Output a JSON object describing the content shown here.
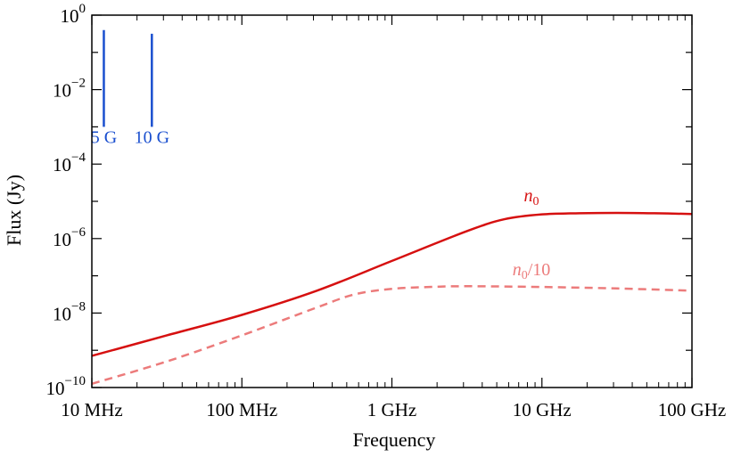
{
  "chart_data": {
    "type": "line",
    "title": "",
    "xlabel": "Frequency",
    "ylabel": "Flux (Jy)",
    "xscale": "log",
    "yscale": "log",
    "xlim_log10_hz": [
      7,
      11
    ],
    "ylim_log10_jy": [
      -10,
      0
    ],
    "x_ticks": [
      {
        "label": "10 MHz",
        "log10_hz": 7
      },
      {
        "label": "100 MHz",
        "log10_hz": 8
      },
      {
        "label": "1 GHz",
        "log10_hz": 9
      },
      {
        "label": "10 GHz",
        "log10_hz": 10
      },
      {
        "label": "100 GHz",
        "log10_hz": 11
      }
    ],
    "y_ticks": [
      {
        "base": "10",
        "exp": "0",
        "log10_jy": 0
      },
      {
        "base": "10",
        "exp": "−2",
        "log10_jy": -2
      },
      {
        "base": "10",
        "exp": "−4",
        "log10_jy": -4
      },
      {
        "base": "10",
        "exp": "−6",
        "log10_jy": -6
      },
      {
        "base": "10",
        "exp": "−8",
        "log10_jy": -8
      },
      {
        "base": "10",
        "exp": "−10",
        "log10_jy": -10
      }
    ],
    "series": [
      {
        "name": "n0",
        "label_main": "n",
        "label_sub": "0",
        "label_tail": "",
        "color": "#d61010",
        "dash": "solid",
        "points_log10": [
          [
            7.0,
            -9.15
          ],
          [
            7.5,
            -8.6
          ],
          [
            8.0,
            -8.05
          ],
          [
            8.5,
            -7.4
          ],
          [
            9.0,
            -6.6
          ],
          [
            9.5,
            -5.8
          ],
          [
            9.75,
            -5.48
          ],
          [
            10.0,
            -5.35
          ],
          [
            10.25,
            -5.32
          ],
          [
            10.5,
            -5.31
          ],
          [
            10.75,
            -5.32
          ],
          [
            11.0,
            -5.34
          ]
        ]
      },
      {
        "name": "n0/10",
        "label_main": "n",
        "label_sub": "0",
        "label_tail": "/10",
        "color": "#ec7b7b",
        "dash": "dashed",
        "points_log10": [
          [
            7.0,
            -9.9
          ],
          [
            7.5,
            -9.3
          ],
          [
            8.0,
            -8.6
          ],
          [
            8.5,
            -7.85
          ],
          [
            8.75,
            -7.5
          ],
          [
            9.0,
            -7.35
          ],
          [
            9.25,
            -7.3
          ],
          [
            9.5,
            -7.28
          ],
          [
            10.0,
            -7.3
          ],
          [
            10.5,
            -7.34
          ],
          [
            11.0,
            -7.4
          ]
        ]
      }
    ],
    "markers": [
      {
        "label": "5 G",
        "log10_hz": 7.08,
        "log10_top": -0.4,
        "log10_bottom": -3.0,
        "color": "#1a4fcf"
      },
      {
        "label": "10 G",
        "log10_hz": 7.4,
        "log10_top": -0.5,
        "log10_bottom": -3.0,
        "color": "#1a4fcf"
      }
    ]
  }
}
